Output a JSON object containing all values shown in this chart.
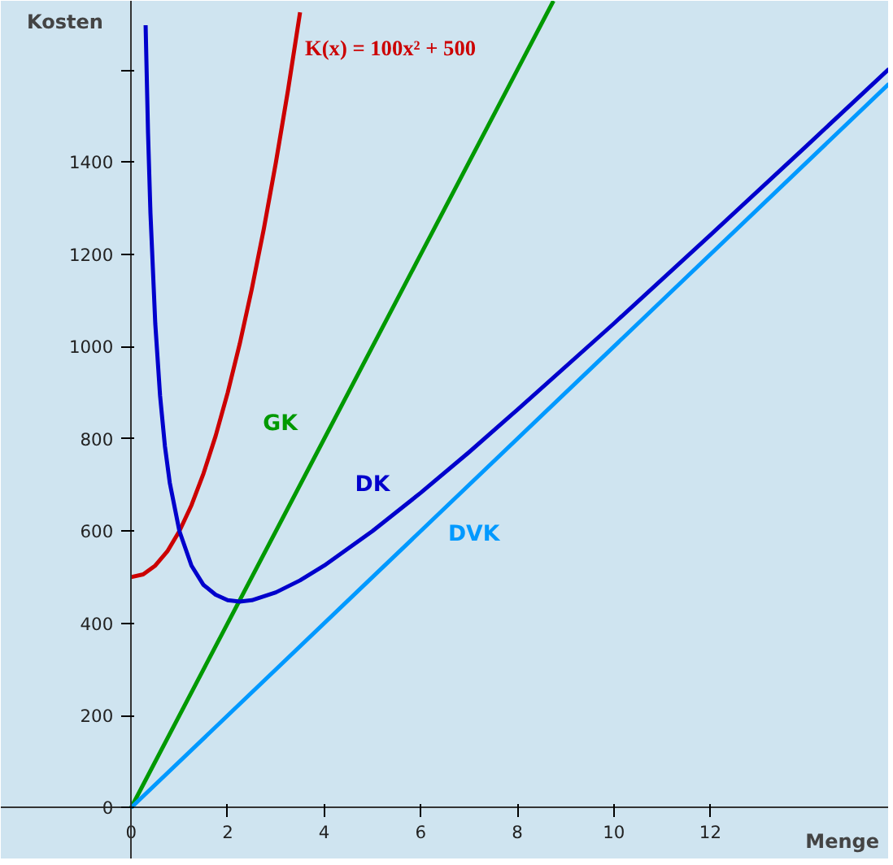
{
  "chart_data": {
    "type": "line",
    "xlabel": "Menge",
    "ylabel": "Kosten",
    "xlim": [
      -2.7,
      15.7
    ],
    "ylim": [
      -112,
      1750
    ],
    "xticks": [
      0,
      2,
      4,
      6,
      8,
      10,
      12
    ],
    "yticks": [
      0,
      200,
      400,
      600,
      800,
      1000,
      1200,
      1400,
      {
        "value": 1600,
        "label": null
      }
    ],
    "grid": false,
    "series": [
      {
        "name": "K(x) = 100x² + 500",
        "color": "#cc0000",
        "x": [
          0,
          0.25,
          0.5,
          0.75,
          1,
          1.25,
          1.5,
          1.75,
          2,
          2.25,
          2.5,
          2.75,
          3,
          3.25,
          3.5
        ],
        "values": [
          500,
          506,
          525,
          556,
          600,
          656,
          725,
          806,
          900,
          1006,
          1125,
          1256,
          1400,
          1556,
          1725
        ]
      },
      {
        "name": "GK",
        "color": "#009900",
        "x": [
          0,
          2,
          4,
          6,
          8,
          8.75
        ],
        "values": [
          0,
          400,
          800,
          1200,
          1600,
          1750
        ]
      },
      {
        "name": "DK",
        "color": "#0000cc",
        "x": [
          0.3,
          0.35,
          0.4,
          0.5,
          0.6,
          0.7,
          0.8,
          1,
          1.25,
          1.5,
          1.75,
          2,
          2.25,
          2.5,
          3,
          3.5,
          4,
          5,
          6,
          7,
          8,
          10,
          12,
          14,
          15.7
        ],
        "values": [
          1697,
          1464,
          1290,
          1050,
          893,
          784,
          705,
          600,
          525,
          483,
          462,
          450,
          447,
          450,
          467,
          493,
          525,
          600,
          683,
          771,
          863,
          1050,
          1242,
          1436,
          1602
        ]
      },
      {
        "name": "DVK",
        "color": "#0099ff",
        "x": [
          0,
          5,
          7,
          10,
          15.7
        ],
        "values": [
          0,
          500,
          700,
          1000,
          1570
        ]
      }
    ]
  }
}
